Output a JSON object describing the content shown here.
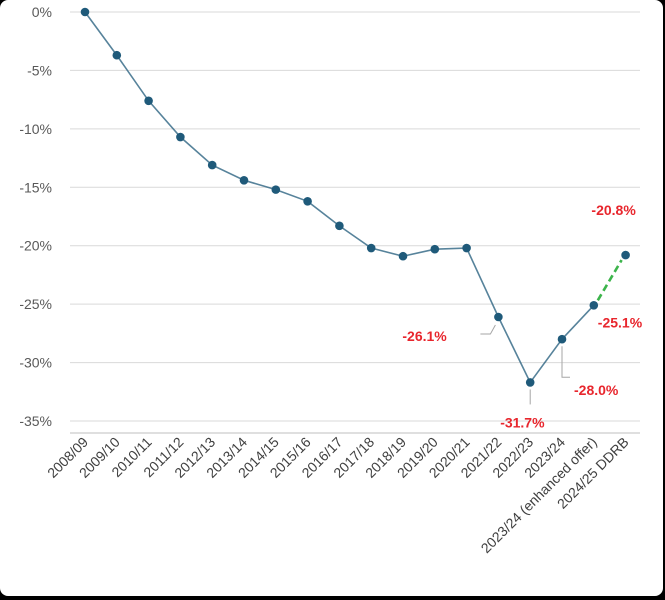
{
  "chart_data": {
    "type": "line",
    "title": "",
    "xlabel": "",
    "ylabel": "",
    "ylim": [
      -35,
      0
    ],
    "yticks": [
      0,
      -5,
      -10,
      -15,
      -20,
      -25,
      -30,
      -35
    ],
    "ytick_labels": [
      "0%",
      "-5%",
      "-10%",
      "-15%",
      "-20%",
      "-25%",
      "-30%",
      "-35%"
    ],
    "grid": true,
    "legend": "none",
    "categories": [
      "2008/09",
      "2009/10",
      "2010/11",
      "2011/12",
      "2012/13",
      "2013/14",
      "2014/15",
      "2015/16",
      "2016/17",
      "2017/18",
      "2018/19",
      "2019/20",
      "2020/21",
      "2021/22",
      "2022/23",
      "2023/24",
      "2023/24 (enhanced offer)",
      "2024/25 DDRB"
    ],
    "series": [
      {
        "values": [
          0,
          -3.7,
          -7.6,
          -10.7,
          -13.1,
          -14.4,
          -15.2,
          -16.2,
          -18.3,
          -20.2,
          -20.9,
          -20.3,
          -20.2,
          -26.1,
          -31.7,
          -28.0,
          -25.1,
          -20.8
        ],
        "color": "#1f5a7a",
        "projection_color": "#3cb44b"
      }
    ],
    "data_labels": [
      {
        "index": 13,
        "text": "-26.1%"
      },
      {
        "index": 14,
        "text": "-31.7%"
      },
      {
        "index": 15,
        "text": "-28.0%"
      },
      {
        "index": 16,
        "text": "-25.1%"
      },
      {
        "index": 17,
        "text": "-20.8%"
      }
    ],
    "label_color": "#e8262d"
  }
}
